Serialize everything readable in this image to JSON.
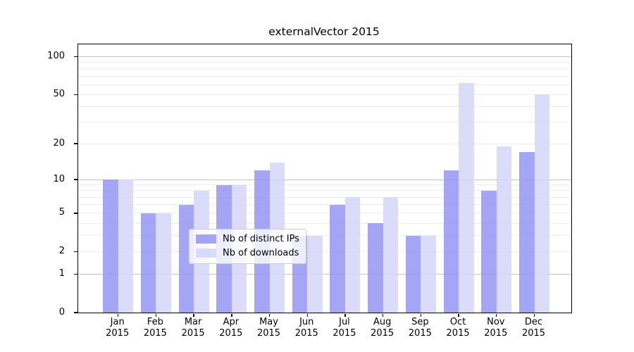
{
  "title": "externalVector 2015",
  "chart_data": {
    "type": "bar",
    "title": "externalVector 2015",
    "categories": [
      "Jan",
      "Feb",
      "Mar",
      "Apr",
      "May",
      "Jun",
      "Jul",
      "Aug",
      "Sep",
      "Oct",
      "Nov",
      "Dec"
    ],
    "x_year_label": "2015",
    "series": [
      {
        "name": "Nb of distinct IPs",
        "color": "rgba(149,149,243,0.85)",
        "values": [
          10,
          5,
          6,
          9,
          12,
          3,
          6,
          4,
          3,
          12,
          8,
          17
        ]
      },
      {
        "name": "Nb of downloads",
        "color": "rgba(213,214,249,0.85)",
        "values": [
          10,
          5,
          8,
          9,
          14,
          3,
          7,
          7,
          3,
          62,
          19,
          50
        ]
      }
    ],
    "yscale": "log1p",
    "ylim": [
      0,
      125
    ],
    "y_ticks": [
      0,
      1,
      2,
      5,
      10,
      20,
      50,
      100
    ],
    "major_gridlines": [
      1,
      10,
      100
    ],
    "minor_gridlines": [
      2,
      3,
      4,
      5,
      6,
      7,
      8,
      9,
      20,
      30,
      40,
      50,
      60,
      70,
      80,
      90
    ],
    "grid": true,
    "legend_position": "lower-center"
  },
  "colors": {
    "major_grid": "#c3c3c3",
    "minor_grid": "#ececec",
    "axis": "#000000",
    "legend_border": "#cccccc"
  }
}
